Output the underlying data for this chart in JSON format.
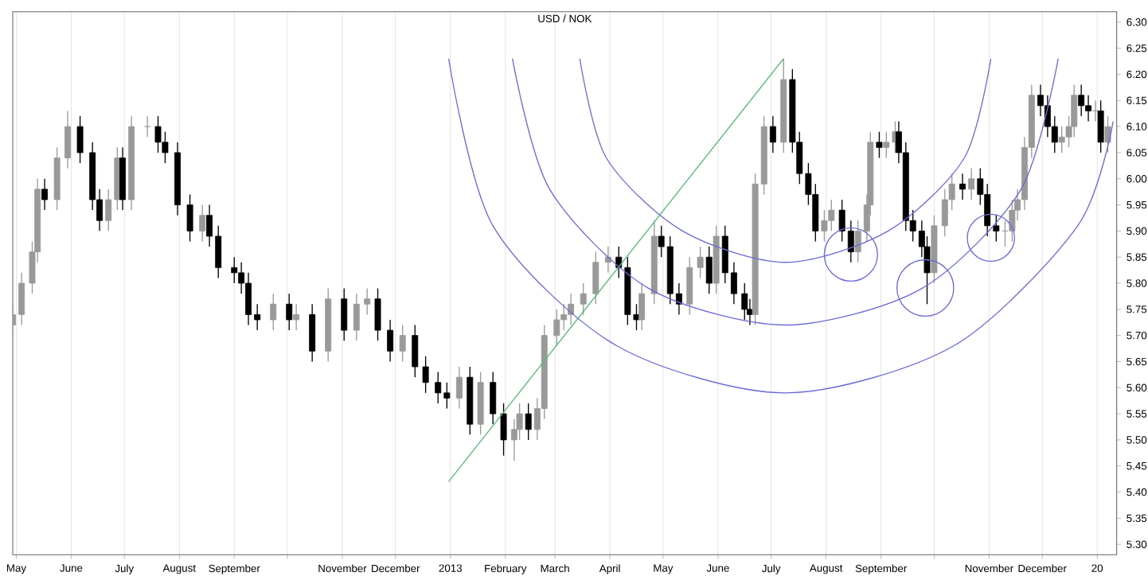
{
  "chart_data": {
    "type": "candlestick",
    "title": "USD / NOK",
    "x": [
      "2012-04-29",
      "2012-05-04",
      "2012-05-10",
      "2012-05-13",
      "2012-05-17",
      "2012-05-24",
      "2012-05-30",
      "2012-06-06",
      "2012-06-13",
      "2012-06-17",
      "2012-06-22",
      "2012-06-27",
      "2012-06-30",
      "2012-07-05",
      "2012-07-14",
      "2012-07-20",
      "2012-07-24",
      "2012-07-31",
      "2012-08-07",
      "2012-08-14",
      "2012-08-18",
      "2012-08-23",
      "2012-09-01",
      "2012-09-05",
      "2012-09-09",
      "2012-09-14",
      "2012-09-23",
      "2012-10-02",
      "2012-10-06",
      "2012-10-15",
      "2012-10-24",
      "2012-11-02",
      "2012-11-09",
      "2012-11-15",
      "2012-11-21",
      "2012-11-28",
      "2012-12-05",
      "2012-12-12",
      "2012-12-18",
      "2012-12-25",
      "2012-12-30",
      "2013-01-06",
      "2013-01-12",
      "2013-01-18",
      "2013-01-25",
      "2013-01-31",
      "2013-02-06",
      "2013-02-09",
      "2013-02-14",
      "2013-02-19",
      "2013-02-23",
      "2013-03-02",
      "2013-03-06",
      "2013-03-10",
      "2013-03-17",
      "2013-03-24",
      "2013-03-31",
      "2013-04-06",
      "2013-04-11",
      "2013-04-16",
      "2013-04-19",
      "2013-04-26",
      "2013-04-30",
      "2013-05-05",
      "2013-05-10",
      "2013-05-16",
      "2013-05-22",
      "2013-05-27",
      "2013-05-31",
      "2013-06-05",
      "2013-06-10",
      "2013-06-16",
      "2013-06-19",
      "2013-06-22",
      "2013-06-27",
      "2013-07-02",
      "2013-07-08",
      "2013-07-13",
      "2013-07-17",
      "2013-07-22",
      "2013-07-26",
      "2013-07-31",
      "2013-08-04",
      "2013-08-10",
      "2013-08-15",
      "2013-08-19",
      "2013-08-24",
      "2013-08-26",
      "2013-08-31",
      "2013-09-04",
      "2013-09-09",
      "2013-09-11",
      "2013-09-15",
      "2013-09-19",
      "2013-09-24",
      "2013-09-27",
      "2013-10-01",
      "2013-10-07",
      "2013-10-11",
      "2013-10-17",
      "2013-10-22",
      "2013-10-27",
      "2013-10-31",
      "2013-11-05",
      "2013-11-10",
      "2013-11-14",
      "2013-11-17",
      "2013-11-21",
      "2013-11-25",
      "2013-11-30",
      "2013-12-04",
      "2013-12-08",
      "2013-12-12",
      "2013-12-16",
      "2013-12-19",
      "2013-12-23",
      "2013-12-27",
      "2013-12-31",
      "2014-01-03",
      "2014-01-07"
    ],
    "ohlc": [
      [
        5.72,
        5.76,
        5.7,
        5.74
      ],
      [
        5.74,
        5.82,
        5.72,
        5.8
      ],
      [
        5.8,
        5.88,
        5.78,
        5.86
      ],
      [
        5.86,
        6.0,
        5.84,
        5.98
      ],
      [
        5.98,
        6.0,
        5.94,
        5.96
      ],
      [
        5.96,
        6.06,
        5.94,
        6.04
      ],
      [
        6.04,
        6.13,
        6.02,
        6.1
      ],
      [
        6.1,
        6.12,
        6.03,
        6.05
      ],
      [
        6.05,
        6.07,
        5.94,
        5.96
      ],
      [
        5.96,
        5.98,
        5.9,
        5.92
      ],
      [
        5.92,
        5.98,
        5.9,
        5.96
      ],
      [
        5.96,
        6.06,
        5.94,
        6.04
      ],
      [
        6.04,
        6.06,
        5.94,
        5.96
      ],
      [
        5.96,
        6.12,
        5.94,
        6.1
      ],
      [
        6.1,
        6.12,
        6.08,
        6.1
      ],
      [
        6.1,
        6.12,
        6.05,
        6.07
      ],
      [
        6.07,
        6.09,
        6.03,
        6.05
      ],
      [
        6.05,
        6.07,
        5.93,
        5.95
      ],
      [
        5.95,
        5.97,
        5.88,
        5.9
      ],
      [
        5.9,
        5.95,
        5.88,
        5.93
      ],
      [
        5.93,
        5.95,
        5.87,
        5.89
      ],
      [
        5.89,
        5.91,
        5.81,
        5.83
      ],
      [
        5.83,
        5.85,
        5.8,
        5.82
      ],
      [
        5.82,
        5.84,
        5.78,
        5.8
      ],
      [
        5.8,
        5.82,
        5.72,
        5.74
      ],
      [
        5.74,
        5.76,
        5.71,
        5.73
      ],
      [
        5.73,
        5.78,
        5.71,
        5.76
      ],
      [
        5.76,
        5.78,
        5.71,
        5.73
      ],
      [
        5.73,
        5.76,
        5.71,
        5.74
      ],
      [
        5.74,
        5.76,
        5.65,
        5.67
      ],
      [
        5.67,
        5.79,
        5.65,
        5.77
      ],
      [
        5.77,
        5.79,
        5.69,
        5.71
      ],
      [
        5.71,
        5.78,
        5.69,
        5.76
      ],
      [
        5.76,
        5.79,
        5.74,
        5.77
      ],
      [
        5.77,
        5.79,
        5.69,
        5.71
      ],
      [
        5.71,
        5.73,
        5.65,
        5.67
      ],
      [
        5.67,
        5.72,
        5.65,
        5.7
      ],
      [
        5.7,
        5.72,
        5.62,
        5.64
      ],
      [
        5.64,
        5.66,
        5.59,
        5.61
      ],
      [
        5.61,
        5.63,
        5.57,
        5.59
      ],
      [
        5.59,
        5.61,
        5.56,
        5.58
      ],
      [
        5.58,
        5.64,
        5.56,
        5.62
      ],
      [
        5.62,
        5.64,
        5.51,
        5.53
      ],
      [
        5.53,
        5.63,
        5.51,
        5.61
      ],
      [
        5.61,
        5.63,
        5.53,
        5.55
      ],
      [
        5.55,
        5.57,
        5.47,
        5.5
      ],
      [
        5.5,
        5.54,
        5.46,
        5.52
      ],
      [
        5.52,
        5.57,
        5.5,
        5.55
      ],
      [
        5.55,
        5.57,
        5.5,
        5.52
      ],
      [
        5.52,
        5.58,
        5.5,
        5.56
      ],
      [
        5.56,
        5.72,
        5.54,
        5.7
      ],
      [
        5.7,
        5.75,
        5.68,
        5.73
      ],
      [
        5.73,
        5.76,
        5.71,
        5.74
      ],
      [
        5.74,
        5.78,
        5.72,
        5.76
      ],
      [
        5.76,
        5.8,
        5.74,
        5.78
      ],
      [
        5.78,
        5.86,
        5.76,
        5.84
      ],
      [
        5.84,
        5.87,
        5.82,
        5.85
      ],
      [
        5.85,
        5.87,
        5.81,
        5.83
      ],
      [
        5.83,
        5.85,
        5.72,
        5.74
      ],
      [
        5.74,
        5.76,
        5.71,
        5.73
      ],
      [
        5.73,
        5.8,
        5.71,
        5.78
      ],
      [
        5.78,
        5.92,
        5.76,
        5.89
      ],
      [
        5.89,
        5.91,
        5.85,
        5.87
      ],
      [
        5.87,
        5.89,
        5.76,
        5.78
      ],
      [
        5.78,
        5.8,
        5.74,
        5.76
      ],
      [
        5.76,
        5.85,
        5.74,
        5.83
      ],
      [
        5.83,
        5.87,
        5.81,
        5.85
      ],
      [
        5.85,
        5.87,
        5.78,
        5.8
      ],
      [
        5.8,
        5.91,
        5.78,
        5.89
      ],
      [
        5.89,
        5.91,
        5.8,
        5.82
      ],
      [
        5.82,
        5.84,
        5.76,
        5.78
      ],
      [
        5.78,
        5.8,
        5.73,
        5.75
      ],
      [
        5.75,
        5.77,
        5.72,
        5.74
      ],
      [
        5.74,
        6.01,
        5.72,
        5.99
      ],
      [
        5.99,
        6.12,
        5.97,
        6.1
      ],
      [
        6.1,
        6.12,
        6.05,
        6.07
      ],
      [
        6.07,
        6.23,
        6.05,
        6.19
      ],
      [
        6.19,
        6.21,
        6.05,
        6.07
      ],
      [
        6.07,
        6.09,
        5.99,
        6.01
      ],
      [
        6.01,
        6.03,
        5.95,
        5.97
      ],
      [
        5.97,
        5.99,
        5.88,
        5.9
      ],
      [
        5.9,
        5.94,
        5.88,
        5.92
      ],
      [
        5.92,
        5.96,
        5.9,
        5.94
      ],
      [
        5.94,
        5.96,
        5.88,
        5.9
      ],
      [
        5.9,
        5.92,
        5.84,
        5.86
      ],
      [
        5.86,
        5.92,
        5.84,
        5.9
      ],
      [
        5.9,
        5.97,
        5.88,
        5.95
      ],
      [
        5.95,
        6.09,
        5.93,
        6.07
      ],
      [
        6.07,
        6.09,
        6.04,
        6.06
      ],
      [
        6.06,
        6.09,
        6.04,
        6.07
      ],
      [
        6.07,
        6.11,
        6.05,
        6.09
      ],
      [
        6.09,
        6.11,
        6.03,
        6.05
      ],
      [
        6.05,
        6.07,
        5.9,
        5.92
      ],
      [
        5.92,
        5.94,
        5.88,
        5.9
      ],
      [
        5.9,
        5.92,
        5.85,
        5.87
      ],
      [
        5.87,
        5.89,
        5.76,
        5.82
      ],
      [
        5.82,
        5.93,
        5.8,
        5.91
      ],
      [
        5.91,
        5.98,
        5.89,
        5.96
      ],
      [
        5.96,
        6.01,
        5.94,
        5.99
      ],
      [
        5.99,
        6.01,
        5.96,
        5.98
      ],
      [
        5.98,
        6.02,
        5.96,
        6.0
      ],
      [
        6.0,
        6.02,
        5.95,
        5.97
      ],
      [
        5.97,
        5.99,
        5.89,
        5.91
      ],
      [
        5.91,
        5.93,
        5.88,
        5.9
      ],
      [
        5.9,
        5.92,
        5.87,
        5.9
      ],
      [
        5.9,
        5.96,
        5.88,
        5.94
      ],
      [
        5.94,
        5.98,
        5.92,
        5.96
      ],
      [
        5.96,
        6.08,
        5.94,
        6.06
      ],
      [
        6.06,
        6.18,
        6.04,
        6.16
      ],
      [
        6.16,
        6.18,
        6.12,
        6.14
      ],
      [
        6.14,
        6.16,
        6.08,
        6.1
      ],
      [
        6.1,
        6.12,
        6.05,
        6.07
      ],
      [
        6.07,
        6.1,
        6.05,
        6.08
      ],
      [
        6.08,
        6.12,
        6.06,
        6.1
      ],
      [
        6.1,
        6.18,
        6.08,
        6.16
      ],
      [
        6.16,
        6.18,
        6.12,
        6.14
      ],
      [
        6.14,
        6.16,
        6.11,
        6.13
      ],
      [
        6.13,
        6.15,
        6.11,
        6.13
      ],
      [
        6.13,
        6.15,
        6.05,
        6.07
      ],
      [
        6.07,
        6.12,
        6.05,
        6.1
      ]
    ],
    "series": [
      {
        "type": "line",
        "color": "#5cb87a",
        "x": [
          "2012-12-31",
          "2013-07-08"
        ],
        "values": [
          5.42,
          6.23
        ]
      },
      {
        "type": "line",
        "color": "#6b6bd6",
        "x": [
          "2013-03-15",
          "2013-03-30",
          "2013-05-12",
          "2013-07-09",
          "2013-09-05",
          "2013-10-18",
          "2013-11-02"
        ],
        "values": [
          6.23,
          6.04,
          5.9,
          5.84,
          5.9,
          6.04,
          6.23
        ]
      },
      {
        "type": "line",
        "color": "#6b6bd6",
        "x": [
          "2013-02-05",
          "2013-02-26",
          "2013-04-23",
          "2013-07-09",
          "2013-09-24",
          "2013-11-19",
          "2013-12-10"
        ],
        "values": [
          6.23,
          5.98,
          5.79,
          5.72,
          5.79,
          5.98,
          6.23
        ]
      },
      {
        "type": "line",
        "color": "#6b6bd6",
        "x": [
          "2012-12-31",
          "2013-01-25",
          "2013-04-05",
          "2013-07-09",
          "2013-10-12",
          "2013-12-21",
          "2014-01-10"
        ],
        "values": [
          6.23,
          5.91,
          5.68,
          5.59,
          5.68,
          5.91,
          6.11
        ]
      }
    ],
    "xlim": [
      "2012-04-29",
      "2014-01-12"
    ],
    "xticks": [
      {
        "value": "2012-05-01",
        "label": "May"
      },
      {
        "value": "2012-06-01",
        "label": "June"
      },
      {
        "value": "2012-07-01",
        "label": "July"
      },
      {
        "value": "2012-08-01",
        "label": "August"
      },
      {
        "value": "2012-09-01",
        "label": "September"
      },
      {
        "value": "2012-10-01",
        "label": null
      },
      {
        "value": "2012-11-01",
        "label": "November"
      },
      {
        "value": "2012-12-01",
        "label": "December"
      },
      {
        "value": "2013-01-01",
        "label": "2013"
      },
      {
        "value": "2013-02-01",
        "label": "February"
      },
      {
        "value": "2013-03-01",
        "label": "March"
      },
      {
        "value": "2013-04-01",
        "label": "April"
      },
      {
        "value": "2013-05-01",
        "label": "May"
      },
      {
        "value": "2013-06-01",
        "label": "June"
      },
      {
        "value": "2013-07-01",
        "label": "July"
      },
      {
        "value": "2013-08-01",
        "label": "August"
      },
      {
        "value": "2013-09-01",
        "label": "September"
      },
      {
        "value": "2013-10-01",
        "label": null
      },
      {
        "value": "2013-11-01",
        "label": "November"
      },
      {
        "value": "2013-12-01",
        "label": "December"
      },
      {
        "value": "2014-01-01",
        "label": "20"
      }
    ],
    "ylim": [
      5.28,
      6.32
    ],
    "yticks": [
      {
        "value": 5.3,
        "label": "5.30"
      },
      5.35,
      {
        "value": 5.4,
        "label": "5.40"
      },
      5.45,
      {
        "value": 5.5,
        "label": "5.50"
      },
      5.55,
      {
        "value": 5.6,
        "label": "5.60"
      },
      5.65,
      {
        "value": 5.7,
        "label": "5.70"
      },
      5.75,
      {
        "value": 5.8,
        "label": "5.80"
      },
      5.85,
      {
        "value": 5.9,
        "label": "5.90"
      },
      5.95,
      {
        "value": 6.0,
        "label": "6.00"
      },
      6.05,
      {
        "value": 6.1,
        "label": "6.10"
      },
      6.15,
      {
        "value": 6.2,
        "label": "6.20"
      },
      6.25,
      {
        "value": 6.3,
        "label": "6.30"
      }
    ],
    "grid": "x"
  }
}
